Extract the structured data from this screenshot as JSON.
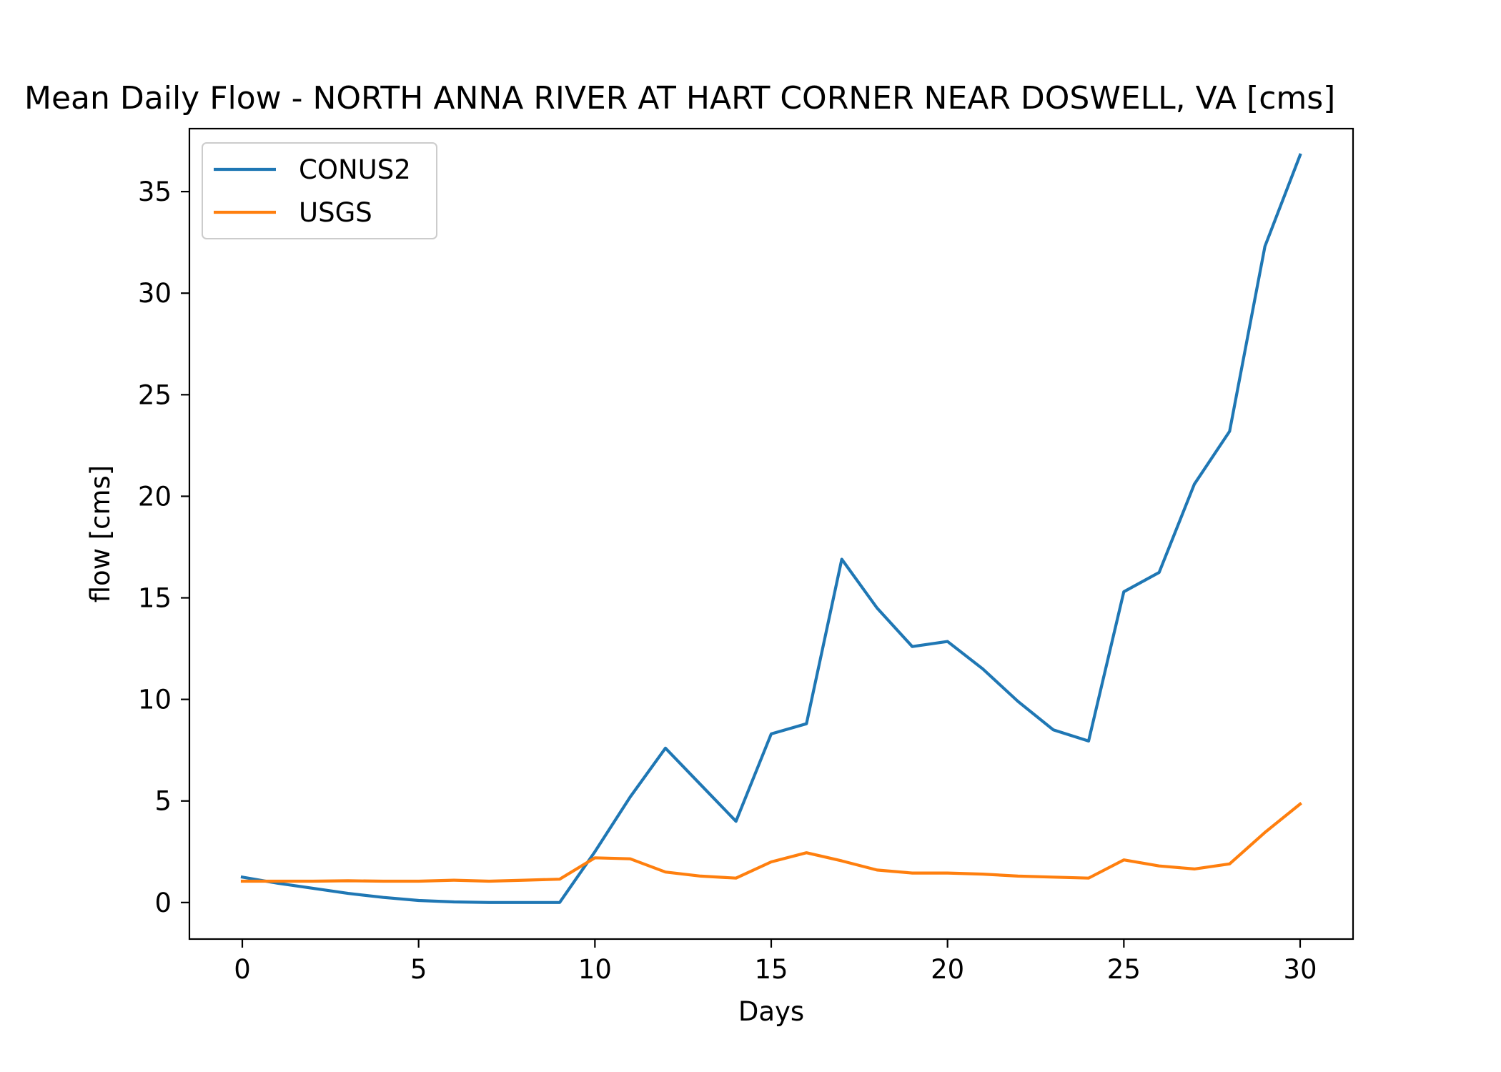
{
  "chart_data": {
    "type": "line",
    "title": "Mean Daily Flow - NORTH ANNA RIVER AT HART CORNER NEAR DOSWELL, VA [cms]",
    "xlabel": "Days",
    "ylabel": "flow [cms]",
    "xlim": [
      -1.5,
      31.5
    ],
    "ylim": [
      -1.8,
      38.1
    ],
    "xticks": [
      0,
      5,
      10,
      15,
      20,
      25,
      30
    ],
    "yticks": [
      0,
      5,
      10,
      15,
      20,
      25,
      30,
      35
    ],
    "grid": false,
    "legend_position": "upper-left",
    "x": [
      0,
      1,
      2,
      3,
      4,
      5,
      6,
      7,
      8,
      9,
      10,
      11,
      12,
      13,
      14,
      15,
      16,
      17,
      18,
      19,
      20,
      21,
      22,
      23,
      24,
      25,
      26,
      27,
      28,
      29,
      30
    ],
    "series": [
      {
        "name": "CONUS2",
        "color": "#1f77b4",
        "values": [
          1.25,
          0.95,
          0.7,
          0.45,
          0.25,
          0.1,
          0.03,
          0.0,
          0.0,
          0.0,
          2.5,
          5.2,
          7.6,
          5.8,
          4.0,
          8.3,
          8.8,
          16.9,
          14.5,
          12.6,
          12.85,
          11.5,
          9.9,
          8.5,
          7.95,
          15.3,
          16.25,
          20.6,
          23.2,
          32.3,
          36.8
        ]
      },
      {
        "name": "USGS",
        "color": "#ff7f0e",
        "values": [
          1.05,
          1.05,
          1.05,
          1.07,
          1.05,
          1.05,
          1.1,
          1.05,
          1.1,
          1.15,
          2.2,
          2.15,
          1.5,
          1.3,
          1.2,
          2.0,
          2.45,
          2.05,
          1.6,
          1.45,
          1.45,
          1.4,
          1.3,
          1.25,
          1.2,
          2.1,
          1.8,
          1.65,
          1.9,
          3.45,
          4.85
        ]
      }
    ]
  }
}
